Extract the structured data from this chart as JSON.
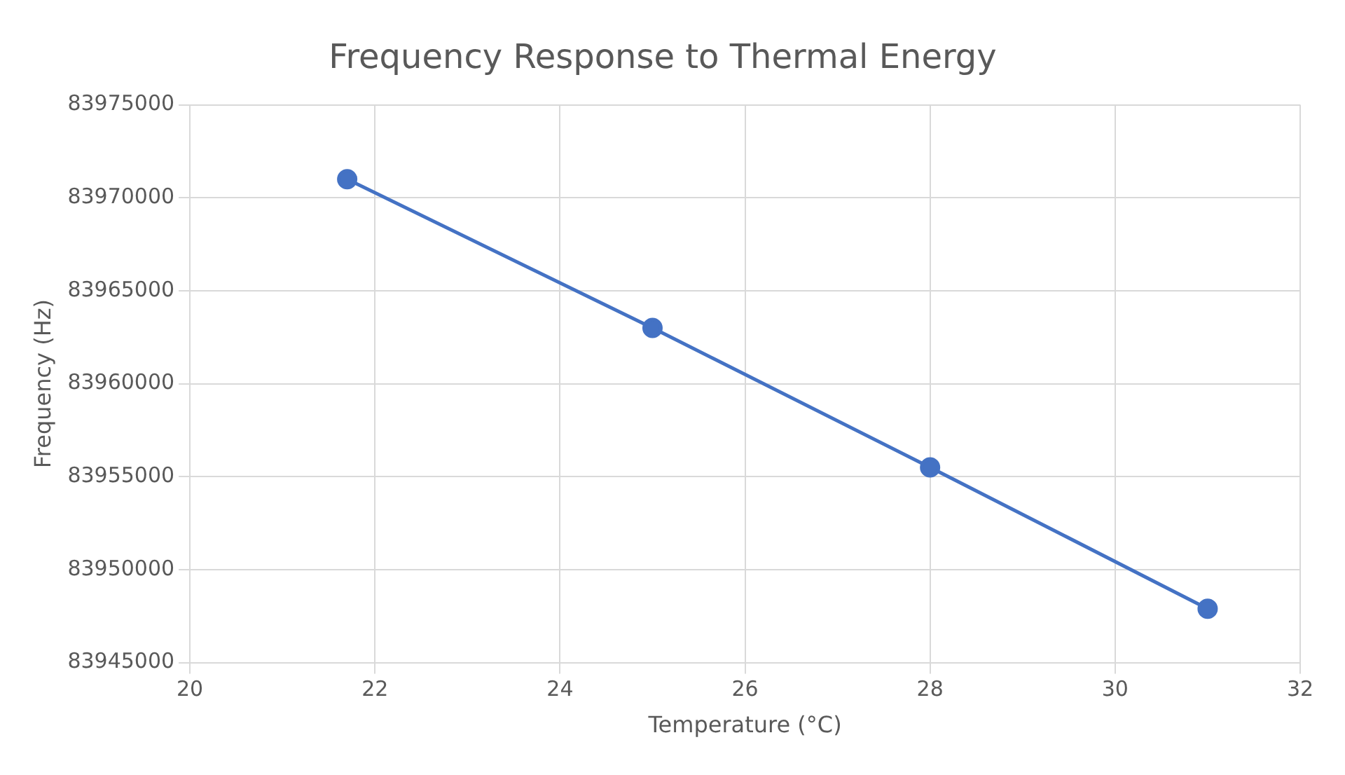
{
  "chart_data": {
    "type": "line",
    "title": "Frequency Response to Thermal Energy",
    "xlabel": "Temperature (°C)",
    "ylabel": "Frequency (Hz)",
    "x": [
      21.7,
      25,
      28,
      31
    ],
    "series": [
      {
        "color": "#4472c4",
        "values": [
          83971000,
          83963000,
          83955500,
          83947900
        ]
      }
    ],
    "xlim": [
      20,
      32
    ],
    "xticks": [
      20,
      22,
      24,
      26,
      28,
      30,
      32
    ],
    "ylim": [
      83945000,
      83975000
    ],
    "yticks": [
      83945000,
      83950000,
      83955000,
      83960000,
      83965000,
      83970000,
      83975000
    ],
    "grid": true,
    "legend": false,
    "marker": "circle",
    "line_style": "solid"
  }
}
